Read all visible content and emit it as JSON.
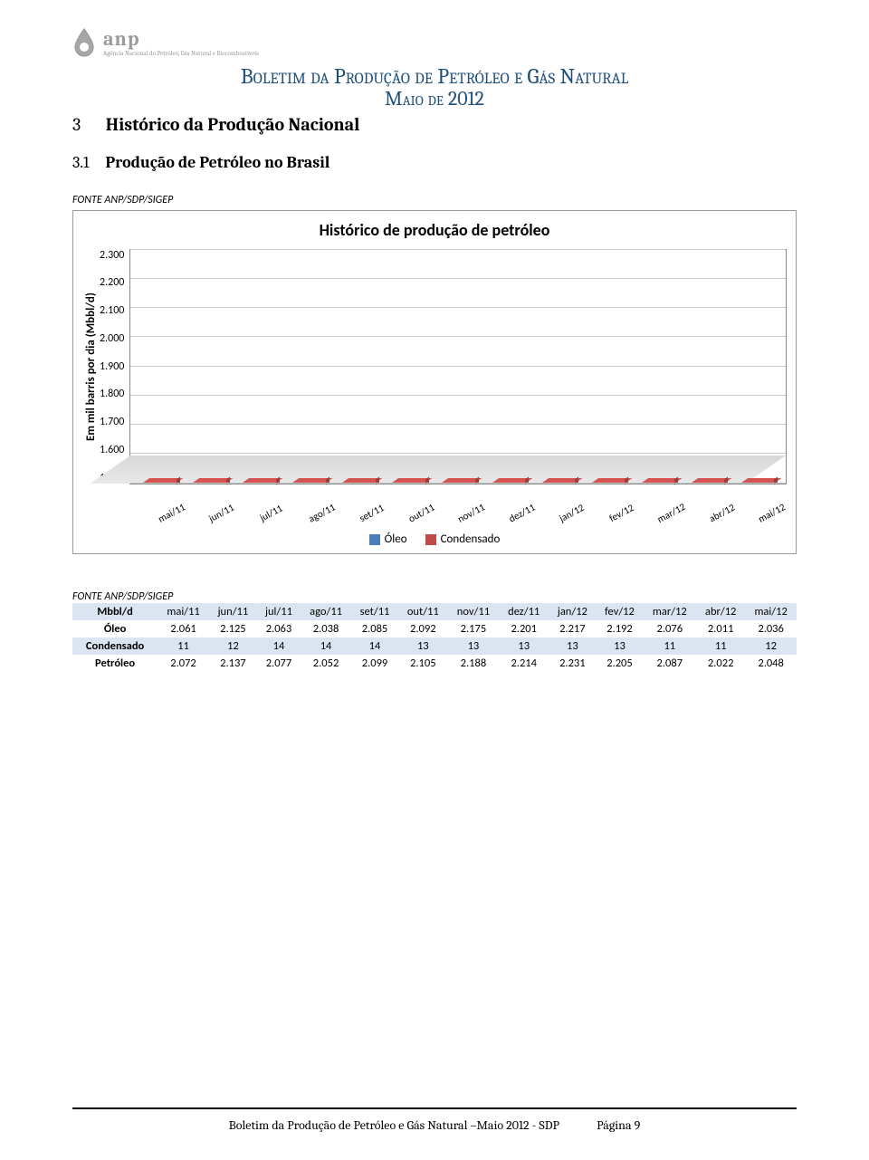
{
  "logo": {
    "brand": "anp",
    "caption": "Agência Nacional do Petróleo, Gás Natural e Biocombustíveis"
  },
  "header": {
    "title": "Boletim da Produção de Petróleo e Gás Natural",
    "subtitle": "Maio de 2012"
  },
  "section": {
    "num": "3",
    "name": "Histórico da Produção Nacional"
  },
  "subsection": {
    "num": "3.1",
    "name": "Produção de Petróleo no Brasil"
  },
  "source_label": "FONTE ANP/SDP/SIGEP",
  "chart": {
    "type": "stacked-bar",
    "title": "Histórico de produção de petróleo",
    "ylabel": "Em mil barris por dia (Mbbl/d)",
    "ylim": [
      1500,
      2300
    ],
    "ytick_step": 100,
    "yticks": [
      "2.300",
      "2.200",
      "2.100",
      "2.000",
      "1.900",
      "1.800",
      "1.700",
      "1.600",
      "1.500"
    ],
    "categories": [
      "mai/11",
      "jun/11",
      "jul/11",
      "ago/11",
      "set/11",
      "out/11",
      "nov/11",
      "dez/11",
      "jan/12",
      "fev/12",
      "mar/12",
      "abr/12",
      "mai/12"
    ],
    "series": [
      {
        "name": "Óleo",
        "color": "#4a7ebb",
        "values": [
          2061,
          2125,
          2063,
          2038,
          2085,
          2092,
          2175,
          2201,
          2217,
          2192,
          2076,
          2011,
          2036
        ]
      },
      {
        "name": "Condensado",
        "color": "#be4b48",
        "values": [
          11,
          12,
          14,
          14,
          14,
          13,
          13,
          13,
          13,
          13,
          11,
          11,
          12
        ]
      }
    ],
    "background_color": "#ffffff",
    "grid_color": "#c9c9c9"
  },
  "table": {
    "column_header_label": "Mbbl/d",
    "columns": [
      "mai/11",
      "jun/11",
      "jul/11",
      "ago/11",
      "set/11",
      "out/11",
      "nov/11",
      "dez/11",
      "jan/12",
      "fev/12",
      "mar/12",
      "abr/12",
      "mai/12"
    ],
    "rows": [
      {
        "label": "Óleo",
        "cells": [
          "2.061",
          "2.125",
          "2.063",
          "2.038",
          "2.085",
          "2.092",
          "2.175",
          "2.201",
          "2.217",
          "2.192",
          "2.076",
          "2.011",
          "2.036"
        ]
      },
      {
        "label": "Condensado",
        "cells": [
          "11",
          "12",
          "14",
          "14",
          "14",
          "13",
          "13",
          "13",
          "13",
          "13",
          "11",
          "11",
          "12"
        ]
      },
      {
        "label": "Petróleo",
        "cells": [
          "2.072",
          "2.137",
          "2.077",
          "2.052",
          "2.099",
          "2.105",
          "2.188",
          "2.214",
          "2.231",
          "2.205",
          "2.087",
          "2.022",
          "2.048"
        ]
      }
    ]
  },
  "footer": {
    "text": "Boletim da Produção de Petróleo e Gás Natural –Maio 2012 - SDP",
    "page_label": "Página 9"
  }
}
